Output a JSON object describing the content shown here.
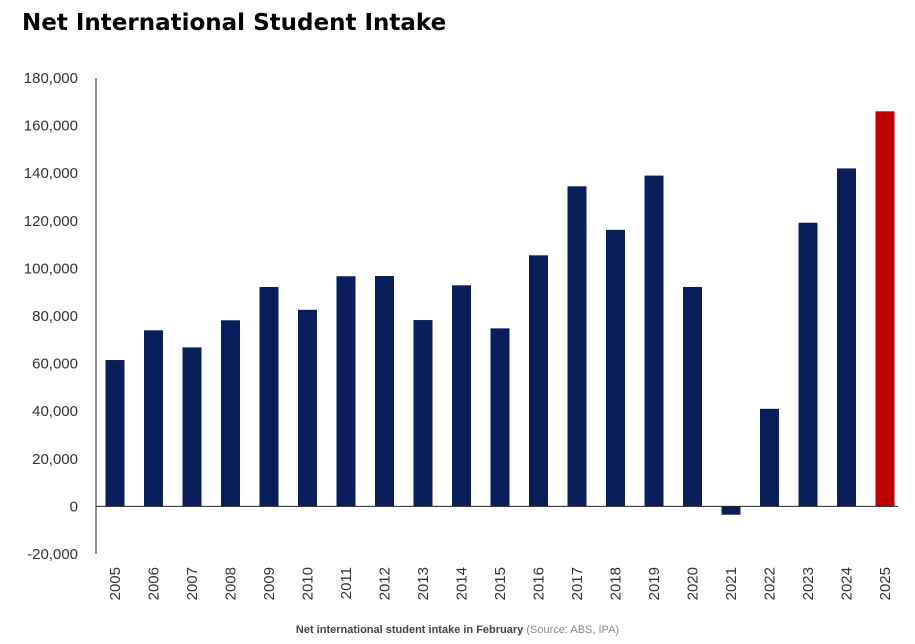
{
  "chart_data": {
    "type": "bar",
    "title": "Net International Student Intake",
    "categories": [
      "2005",
      "2006",
      "2007",
      "2008",
      "2009",
      "2010",
      "2011",
      "2012",
      "2013",
      "2014",
      "2015",
      "2016",
      "2017",
      "2018",
      "2019",
      "2020",
      "2021",
      "2022",
      "2023",
      "2024",
      "2025"
    ],
    "values": [
      61500,
      74000,
      66800,
      78200,
      92200,
      82600,
      96700,
      96800,
      78300,
      92900,
      74800,
      105500,
      134500,
      116200,
      139000,
      92200,
      -3500,
      41000,
      119200,
      142000,
      166000
    ],
    "highlight_category": "2025",
    "colors": {
      "bar": "#0a1e5c",
      "highlight": "#c00000"
    },
    "ylim": [
      -20000,
      180000
    ],
    "yticks": [
      -20000,
      0,
      20000,
      40000,
      60000,
      80000,
      100000,
      120000,
      140000,
      160000,
      180000
    ],
    "ytick_labels": [
      "-20,000",
      "0",
      "20,000",
      "40,000",
      "60,000",
      "80,000",
      "100,000",
      "120,000",
      "140,000",
      "160,000",
      "180,000"
    ],
    "xlabel": "",
    "ylabel": "",
    "grid": false
  },
  "caption": {
    "main": "Net international student intake in February",
    "source": "(Source: ABS, IPA)"
  }
}
